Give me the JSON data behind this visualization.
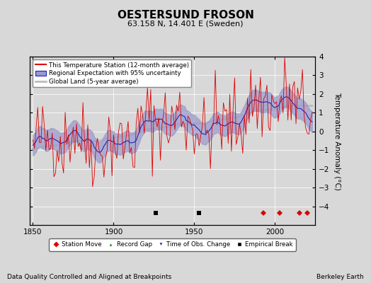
{
  "title": "OESTERSUND FROSON",
  "subtitle": "63.158 N, 14.401 E (Sweden)",
  "ylabel": "Temperature Anomaly (°C)",
  "xlabel_left": "Data Quality Controlled and Aligned at Breakpoints",
  "xlabel_right": "Berkeley Earth",
  "ylim": [
    -5,
    4
  ],
  "xlim": [
    1848,
    2025
  ],
  "xticks": [
    1850,
    1900,
    1950,
    2000
  ],
  "yticks": [
    -4,
    -3,
    -2,
    -1,
    0,
    1,
    2,
    3,
    4
  ],
  "bg_color": "#d8d8d8",
  "plot_bg_color": "#d8d8d8",
  "station_color": "#dd0000",
  "regional_color": "#2222bb",
  "regional_fill_color": "#9999cc",
  "global_land_color": "#bbbbbb",
  "legend_labels": [
    "This Temperature Station (12-month average)",
    "Regional Expectation with 95% uncertainty",
    "Global Land (5-year average)"
  ],
  "marker_year_station_move": [
    1993,
    2003,
    2015,
    2020
  ],
  "marker_year_empirical_break": [
    1926,
    1953
  ],
  "year_start": 1850,
  "year_end": 2023,
  "seed": 42
}
